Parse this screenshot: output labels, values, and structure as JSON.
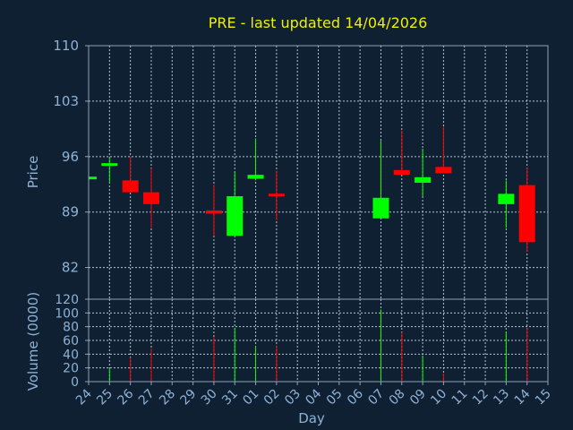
{
  "chart_data": {
    "type": "candlestick",
    "title": "PRE - last updated 14/04/2026",
    "xlabel": "Day",
    "colors": {
      "background": "#0f2033",
      "text": "#8fb2d6",
      "title": "#f0f000",
      "grid": "#b4c3d2",
      "frame": "#8ea4ba",
      "up": "#00ff00",
      "down": "#ff0000"
    },
    "x_ticks": [
      "24",
      "25",
      "26",
      "27",
      "28",
      "29",
      "30",
      "31",
      "01",
      "02",
      "03",
      "04",
      "05",
      "06",
      "07",
      "08",
      "09",
      "10",
      "11",
      "12",
      "13",
      "14",
      "15"
    ],
    "price_panel": {
      "ylabel": "Price",
      "ylim": [
        78,
        110
      ],
      "ticks": [
        110,
        103,
        96,
        89,
        82
      ],
      "grid": true
    },
    "volume_panel": {
      "ylabel": "Volume (0000)",
      "ylim": [
        0,
        120
      ],
      "ticks": [
        120,
        100,
        80,
        60,
        40,
        20,
        0
      ],
      "grid": true
    },
    "candles": [
      {
        "day": "24",
        "open": 93.3,
        "close": 93.3,
        "high": 93.3,
        "low": 93.3,
        "volume": 0,
        "color": "up"
      },
      {
        "day": "25",
        "open": 95.0,
        "close": 95.0,
        "high": 96.0,
        "low": 92.7,
        "volume": 20,
        "color": "up"
      },
      {
        "day": "26",
        "open": 93.0,
        "close": 91.5,
        "high": 96.0,
        "low": 91.5,
        "volume": 35,
        "color": "down"
      },
      {
        "day": "27",
        "open": 91.5,
        "close": 90.0,
        "high": 94.5,
        "low": 87.0,
        "volume": 48,
        "color": "down"
      },
      {
        "day": "30",
        "open": 89.2,
        "close": 88.8,
        "high": 92.5,
        "low": 86.0,
        "volume": 65,
        "color": "down"
      },
      {
        "day": "31",
        "open": 86.0,
        "close": 91.0,
        "high": 94.0,
        "low": 86.0,
        "volume": 78,
        "color": "up"
      },
      {
        "day": "01",
        "open": 93.2,
        "close": 93.7,
        "high": 98.3,
        "low": 93.0,
        "volume": 52,
        "color": "up"
      },
      {
        "day": "02",
        "open": 91.3,
        "close": 91.0,
        "high": 94.2,
        "low": 88.0,
        "volume": 52,
        "color": "down"
      },
      {
        "day": "07",
        "open": 88.2,
        "close": 90.8,
        "high": 98.0,
        "low": 88.2,
        "volume": 105,
        "color": "up"
      },
      {
        "day": "08",
        "open": 94.3,
        "close": 93.7,
        "high": 99.3,
        "low": 93.7,
        "volume": 72,
        "color": "down"
      },
      {
        "day": "09",
        "open": 92.7,
        "close": 93.4,
        "high": 97.0,
        "low": 91.0,
        "volume": 38,
        "color": "up"
      },
      {
        "day": "10",
        "open": 94.7,
        "close": 93.9,
        "high": 99.8,
        "low": 93.9,
        "volume": 12,
        "color": "down"
      },
      {
        "day": "13",
        "open": 90.0,
        "close": 91.3,
        "high": 93.0,
        "low": 87.0,
        "volume": 73,
        "color": "up"
      },
      {
        "day": "14",
        "open": 92.4,
        "close": 85.2,
        "high": 94.6,
        "low": 84.0,
        "volume": 78,
        "color": "down"
      }
    ]
  }
}
